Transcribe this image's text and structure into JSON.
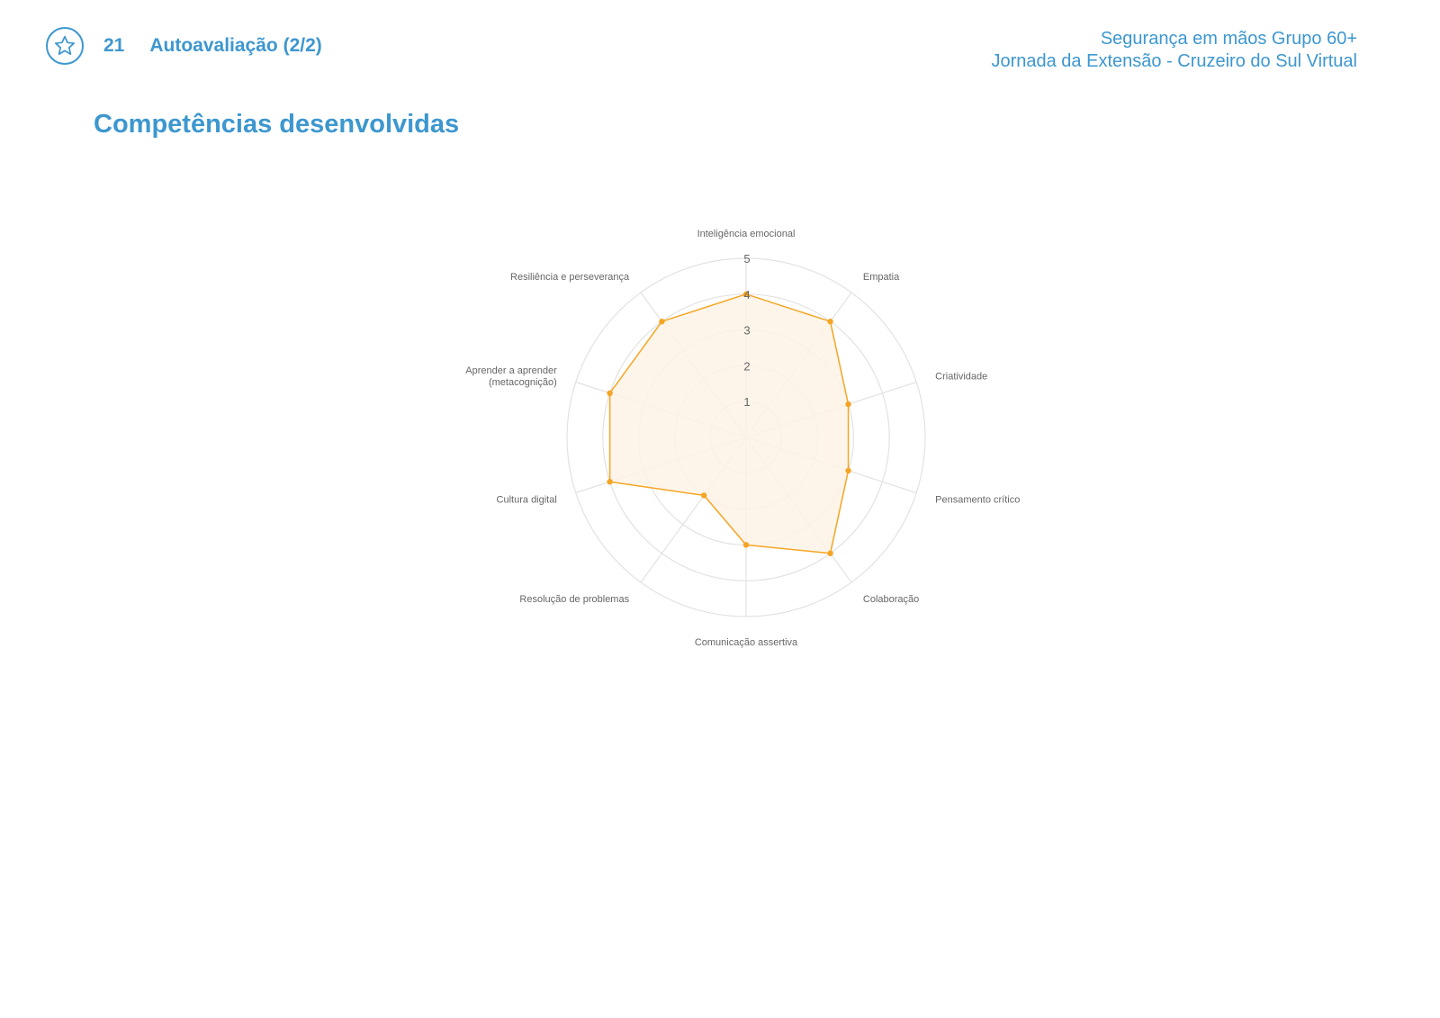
{
  "header": {
    "page_number": "21",
    "section": "Autoavaliação (2/2)",
    "icon": "star-icon",
    "course_title": "Segurança em mãos Grupo 60+",
    "course_subtitle": "Jornada da Extensão - Cruzeiro do Sul Virtual"
  },
  "page_title": "Competências desenvolvidas",
  "colors": {
    "accent": "#3d97cf",
    "series_line": "#f5a524",
    "series_fill": "#fdf3e6",
    "grid": "#e2e2e2",
    "label": "#666666"
  },
  "chart_data": {
    "type": "radar",
    "title": "",
    "axes": [
      "Inteligência emocional",
      "Empatia",
      "Criatividade",
      "Pensamento crítico",
      "Colaboração",
      "Comunicação assertiva",
      "Resolução de problemas",
      "Cultura digital",
      "Aprender a aprender (metacognição)",
      "Resiliência e perseverança"
    ],
    "axis_label_lines": [
      [
        "Inteligência emocional"
      ],
      [
        "Empatia"
      ],
      [
        "Criatividade"
      ],
      [
        "Pensamento crítico"
      ],
      [
        "Colaboração"
      ],
      [
        "Comunicação assertiva"
      ],
      [
        "Resolução de problemas"
      ],
      [
        "Cultura digital"
      ],
      [
        "Aprender a aprender",
        "(metacognição)"
      ],
      [
        "Resiliência e perseverança"
      ]
    ],
    "series": [
      {
        "values": [
          4,
          4,
          3,
          3,
          4,
          3,
          2,
          4,
          4,
          4
        ]
      }
    ],
    "range": [
      0,
      5
    ],
    "ticks": [
      1,
      2,
      3,
      4,
      5
    ],
    "grid": true,
    "legend": "none"
  }
}
